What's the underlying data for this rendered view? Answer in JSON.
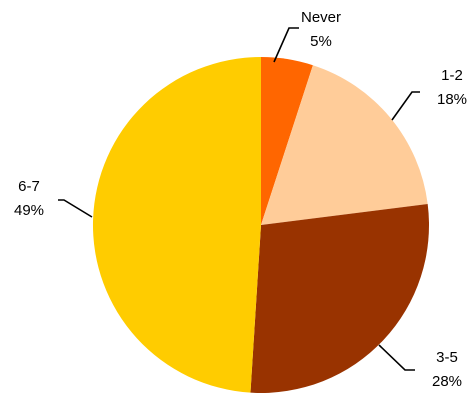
{
  "chart_data": {
    "type": "pie",
    "title": "",
    "start_angle_deg": 0,
    "direction": "clockwise",
    "slices": [
      {
        "label": "Never",
        "value": 5,
        "display": "5%",
        "color": "#FF6600"
      },
      {
        "label": "1-2",
        "value": 18,
        "display": "18%",
        "color": "#FFCC99"
      },
      {
        "label": "3-5",
        "value": 28,
        "display": "28%",
        "color": "#993300"
      },
      {
        "label": "6-7",
        "value": 49,
        "display": "49%",
        "color": "#FFCC00"
      }
    ]
  }
}
